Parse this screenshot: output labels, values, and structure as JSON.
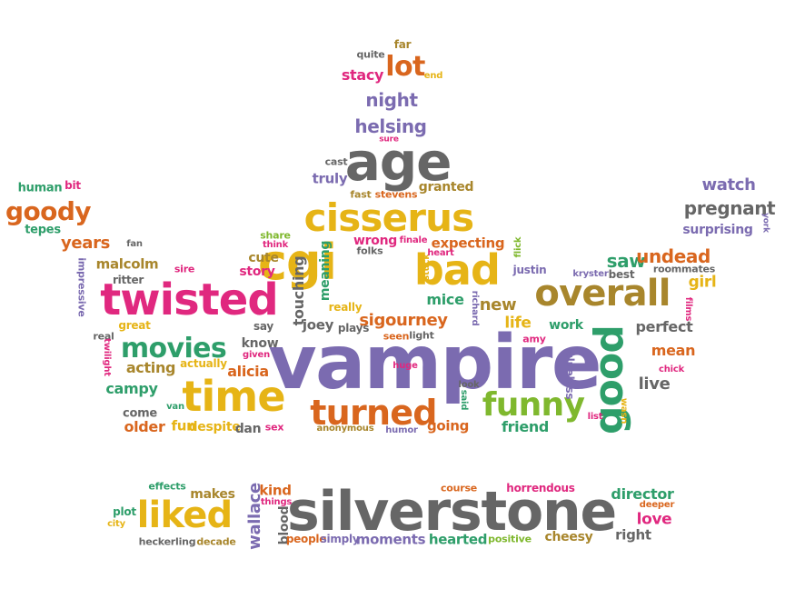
{
  "colors": {
    "purple": "#7b6bb0",
    "orange": "#d9661e",
    "yellow": "#e6b416",
    "green": "#2e9e6a",
    "pink": "#e0287f",
    "gray": "#666666",
    "olive": "#a8862c",
    "lime": "#7fb82e"
  },
  "words": [
    {
      "t": "vampire",
      "c": "purple"
    },
    {
      "t": "silverstone",
      "c": "gray"
    },
    {
      "t": "cgi",
      "c": "yellow"
    },
    {
      "t": "bad",
      "c": "yellow"
    },
    {
      "t": "twisted",
      "c": "pink"
    },
    {
      "t": "overall",
      "c": "olive"
    },
    {
      "t": "cisserus",
      "c": "yellow"
    },
    {
      "t": "age",
      "c": "gray"
    },
    {
      "t": "time",
      "c": "yellow"
    },
    {
      "t": "turned",
      "c": "orange"
    },
    {
      "t": "liked",
      "c": "yellow"
    },
    {
      "t": "movies",
      "c": "green"
    },
    {
      "t": "funny",
      "c": "lime"
    },
    {
      "t": "good",
      "c": "green"
    },
    {
      "t": "lot",
      "c": "orange"
    },
    {
      "t": "goody",
      "c": "orange"
    },
    {
      "t": "night",
      "c": "purple"
    },
    {
      "t": "helsing",
      "c": "purple"
    },
    {
      "t": "stacy",
      "c": "pink"
    },
    {
      "t": "quite",
      "c": "gray"
    },
    {
      "t": "far",
      "c": "olive"
    },
    {
      "t": "end",
      "c": "yellow"
    },
    {
      "t": "sure",
      "c": "pink"
    },
    {
      "t": "cast",
      "c": "gray"
    },
    {
      "t": "truly",
      "c": "purple"
    },
    {
      "t": "fast",
      "c": "olive"
    },
    {
      "t": "stevens",
      "c": "orange"
    },
    {
      "t": "granted",
      "c": "olive"
    },
    {
      "t": "human",
      "c": "green"
    },
    {
      "t": "bit",
      "c": "pink"
    },
    {
      "t": "tepes",
      "c": "green"
    },
    {
      "t": "years",
      "c": "orange"
    },
    {
      "t": "fan",
      "c": "gray"
    },
    {
      "t": "malcolm",
      "c": "olive"
    },
    {
      "t": "ritter",
      "c": "gray"
    },
    {
      "t": "impressive",
      "c": "purple"
    },
    {
      "t": "sire",
      "c": "pink"
    },
    {
      "t": "story",
      "c": "pink"
    },
    {
      "t": "cute",
      "c": "olive"
    },
    {
      "t": "share",
      "c": "lime"
    },
    {
      "t": "think",
      "c": "pink"
    },
    {
      "t": "wrong",
      "c": "pink"
    },
    {
      "t": "folks",
      "c": "gray"
    },
    {
      "t": "finale",
      "c": "pink"
    },
    {
      "t": "expecting",
      "c": "orange"
    },
    {
      "t": "flick",
      "c": "lime"
    },
    {
      "t": "touching",
      "c": "gray"
    },
    {
      "t": "meaning",
      "c": "green"
    },
    {
      "t": "stuck",
      "c": "yellow"
    },
    {
      "t": "heart",
      "c": "pink"
    },
    {
      "t": "mice",
      "c": "green"
    },
    {
      "t": "new",
      "c": "olive"
    },
    {
      "t": "justin",
      "c": "purple"
    },
    {
      "t": "saw",
      "c": "green"
    },
    {
      "t": "undead",
      "c": "orange"
    },
    {
      "t": "kryster",
      "c": "purple"
    },
    {
      "t": "best",
      "c": "gray"
    },
    {
      "t": "roommates",
      "c": "gray"
    },
    {
      "t": "watch",
      "c": "purple"
    },
    {
      "t": "pregnant",
      "c": "gray"
    },
    {
      "t": "surprising",
      "c": "purple"
    },
    {
      "t": "york",
      "c": "purple"
    },
    {
      "t": "girl",
      "c": "yellow"
    },
    {
      "t": "films",
      "c": "pink"
    },
    {
      "t": "really",
      "c": "yellow"
    },
    {
      "t": "joey",
      "c": "gray"
    },
    {
      "t": "say",
      "c": "gray"
    },
    {
      "t": "great",
      "c": "yellow"
    },
    {
      "t": "real",
      "c": "gray"
    },
    {
      "t": "know",
      "c": "gray"
    },
    {
      "t": "given",
      "c": "pink"
    },
    {
      "t": "plays",
      "c": "gray"
    },
    {
      "t": "sigourney",
      "c": "orange"
    },
    {
      "t": "seen",
      "c": "orange"
    },
    {
      "t": "light",
      "c": "gray"
    },
    {
      "t": "richard",
      "c": "purple"
    },
    {
      "t": "life",
      "c": "yellow"
    },
    {
      "t": "work",
      "c": "green"
    },
    {
      "t": "perfect",
      "c": "gray"
    },
    {
      "t": "amy",
      "c": "pink"
    },
    {
      "t": "mean",
      "c": "orange"
    },
    {
      "t": "chick",
      "c": "pink"
    },
    {
      "t": "acting",
      "c": "olive"
    },
    {
      "t": "actually",
      "c": "yellow"
    },
    {
      "t": "twilight",
      "c": "pink"
    },
    {
      "t": "alicia",
      "c": "orange"
    },
    {
      "t": "campy",
      "c": "green"
    },
    {
      "t": "huge",
      "c": "pink"
    },
    {
      "t": "look",
      "c": "gray"
    },
    {
      "t": "said",
      "c": "green"
    },
    {
      "t": "clueless",
      "c": "purple"
    },
    {
      "t": "live",
      "c": "gray"
    },
    {
      "t": "come",
      "c": "gray"
    },
    {
      "t": "van",
      "c": "green"
    },
    {
      "t": "older",
      "c": "orange"
    },
    {
      "t": "fun",
      "c": "yellow"
    },
    {
      "t": "despite",
      "c": "yellow"
    },
    {
      "t": "dan",
      "c": "gray"
    },
    {
      "t": "sex",
      "c": "pink"
    },
    {
      "t": "anonymous",
      "c": "olive"
    },
    {
      "t": "humor",
      "c": "purple"
    },
    {
      "t": "going",
      "c": "orange"
    },
    {
      "t": "friend",
      "c": "green"
    },
    {
      "t": "list",
      "c": "pink"
    },
    {
      "t": "wasn",
      "c": "yellow"
    },
    {
      "t": "effects",
      "c": "green"
    },
    {
      "t": "makes",
      "c": "olive"
    },
    {
      "t": "plot",
      "c": "green"
    },
    {
      "t": "city",
      "c": "yellow"
    },
    {
      "t": "heckerling",
      "c": "gray"
    },
    {
      "t": "decade",
      "c": "olive"
    },
    {
      "t": "wallace",
      "c": "purple"
    },
    {
      "t": "kind",
      "c": "orange"
    },
    {
      "t": "things",
      "c": "pink"
    },
    {
      "t": "blood",
      "c": "gray"
    },
    {
      "t": "people",
      "c": "orange"
    },
    {
      "t": "simply",
      "c": "purple"
    },
    {
      "t": "moments",
      "c": "purple"
    },
    {
      "t": "hearted",
      "c": "green"
    },
    {
      "t": "positive",
      "c": "lime"
    },
    {
      "t": "course",
      "c": "orange"
    },
    {
      "t": "horrendous",
      "c": "pink"
    },
    {
      "t": "director",
      "c": "green"
    },
    {
      "t": "deeper",
      "c": "orange"
    },
    {
      "t": "love",
      "c": "pink"
    },
    {
      "t": "cheesy",
      "c": "olive"
    },
    {
      "t": "right",
      "c": "gray"
    }
  ]
}
